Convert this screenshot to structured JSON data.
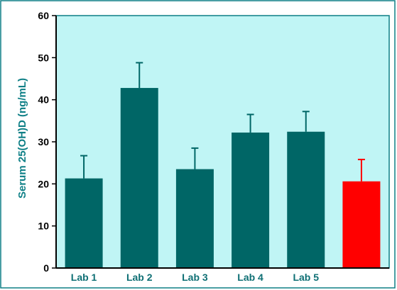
{
  "chart_data": {
    "type": "bar",
    "title": "",
    "xlabel": "",
    "ylabel": "Serum 25(OH)D  (ng/mL)",
    "ylim": [
      0,
      60
    ],
    "yticks": [
      0,
      10,
      20,
      30,
      40,
      50,
      60
    ],
    "categories": [
      "Lab 1",
      "Lab 2",
      "Lab 3",
      "Lab 4",
      "Lab 5",
      ""
    ],
    "values": [
      21.3,
      42.8,
      23.5,
      32.2,
      32.4,
      20.6
    ],
    "error_upper": [
      26.7,
      48.8,
      28.5,
      36.5,
      37.2,
      25.8
    ],
    "bar_colors": [
      "#006666",
      "#006666",
      "#006666",
      "#006666",
      "#006666",
      "#ff0000"
    ],
    "grid": false,
    "colors": {
      "plot_background": "#c0f5f5",
      "frame": "#0e7f86",
      "tick_label_x": "#0e6f74",
      "axis_label": "#0e7f86"
    }
  }
}
